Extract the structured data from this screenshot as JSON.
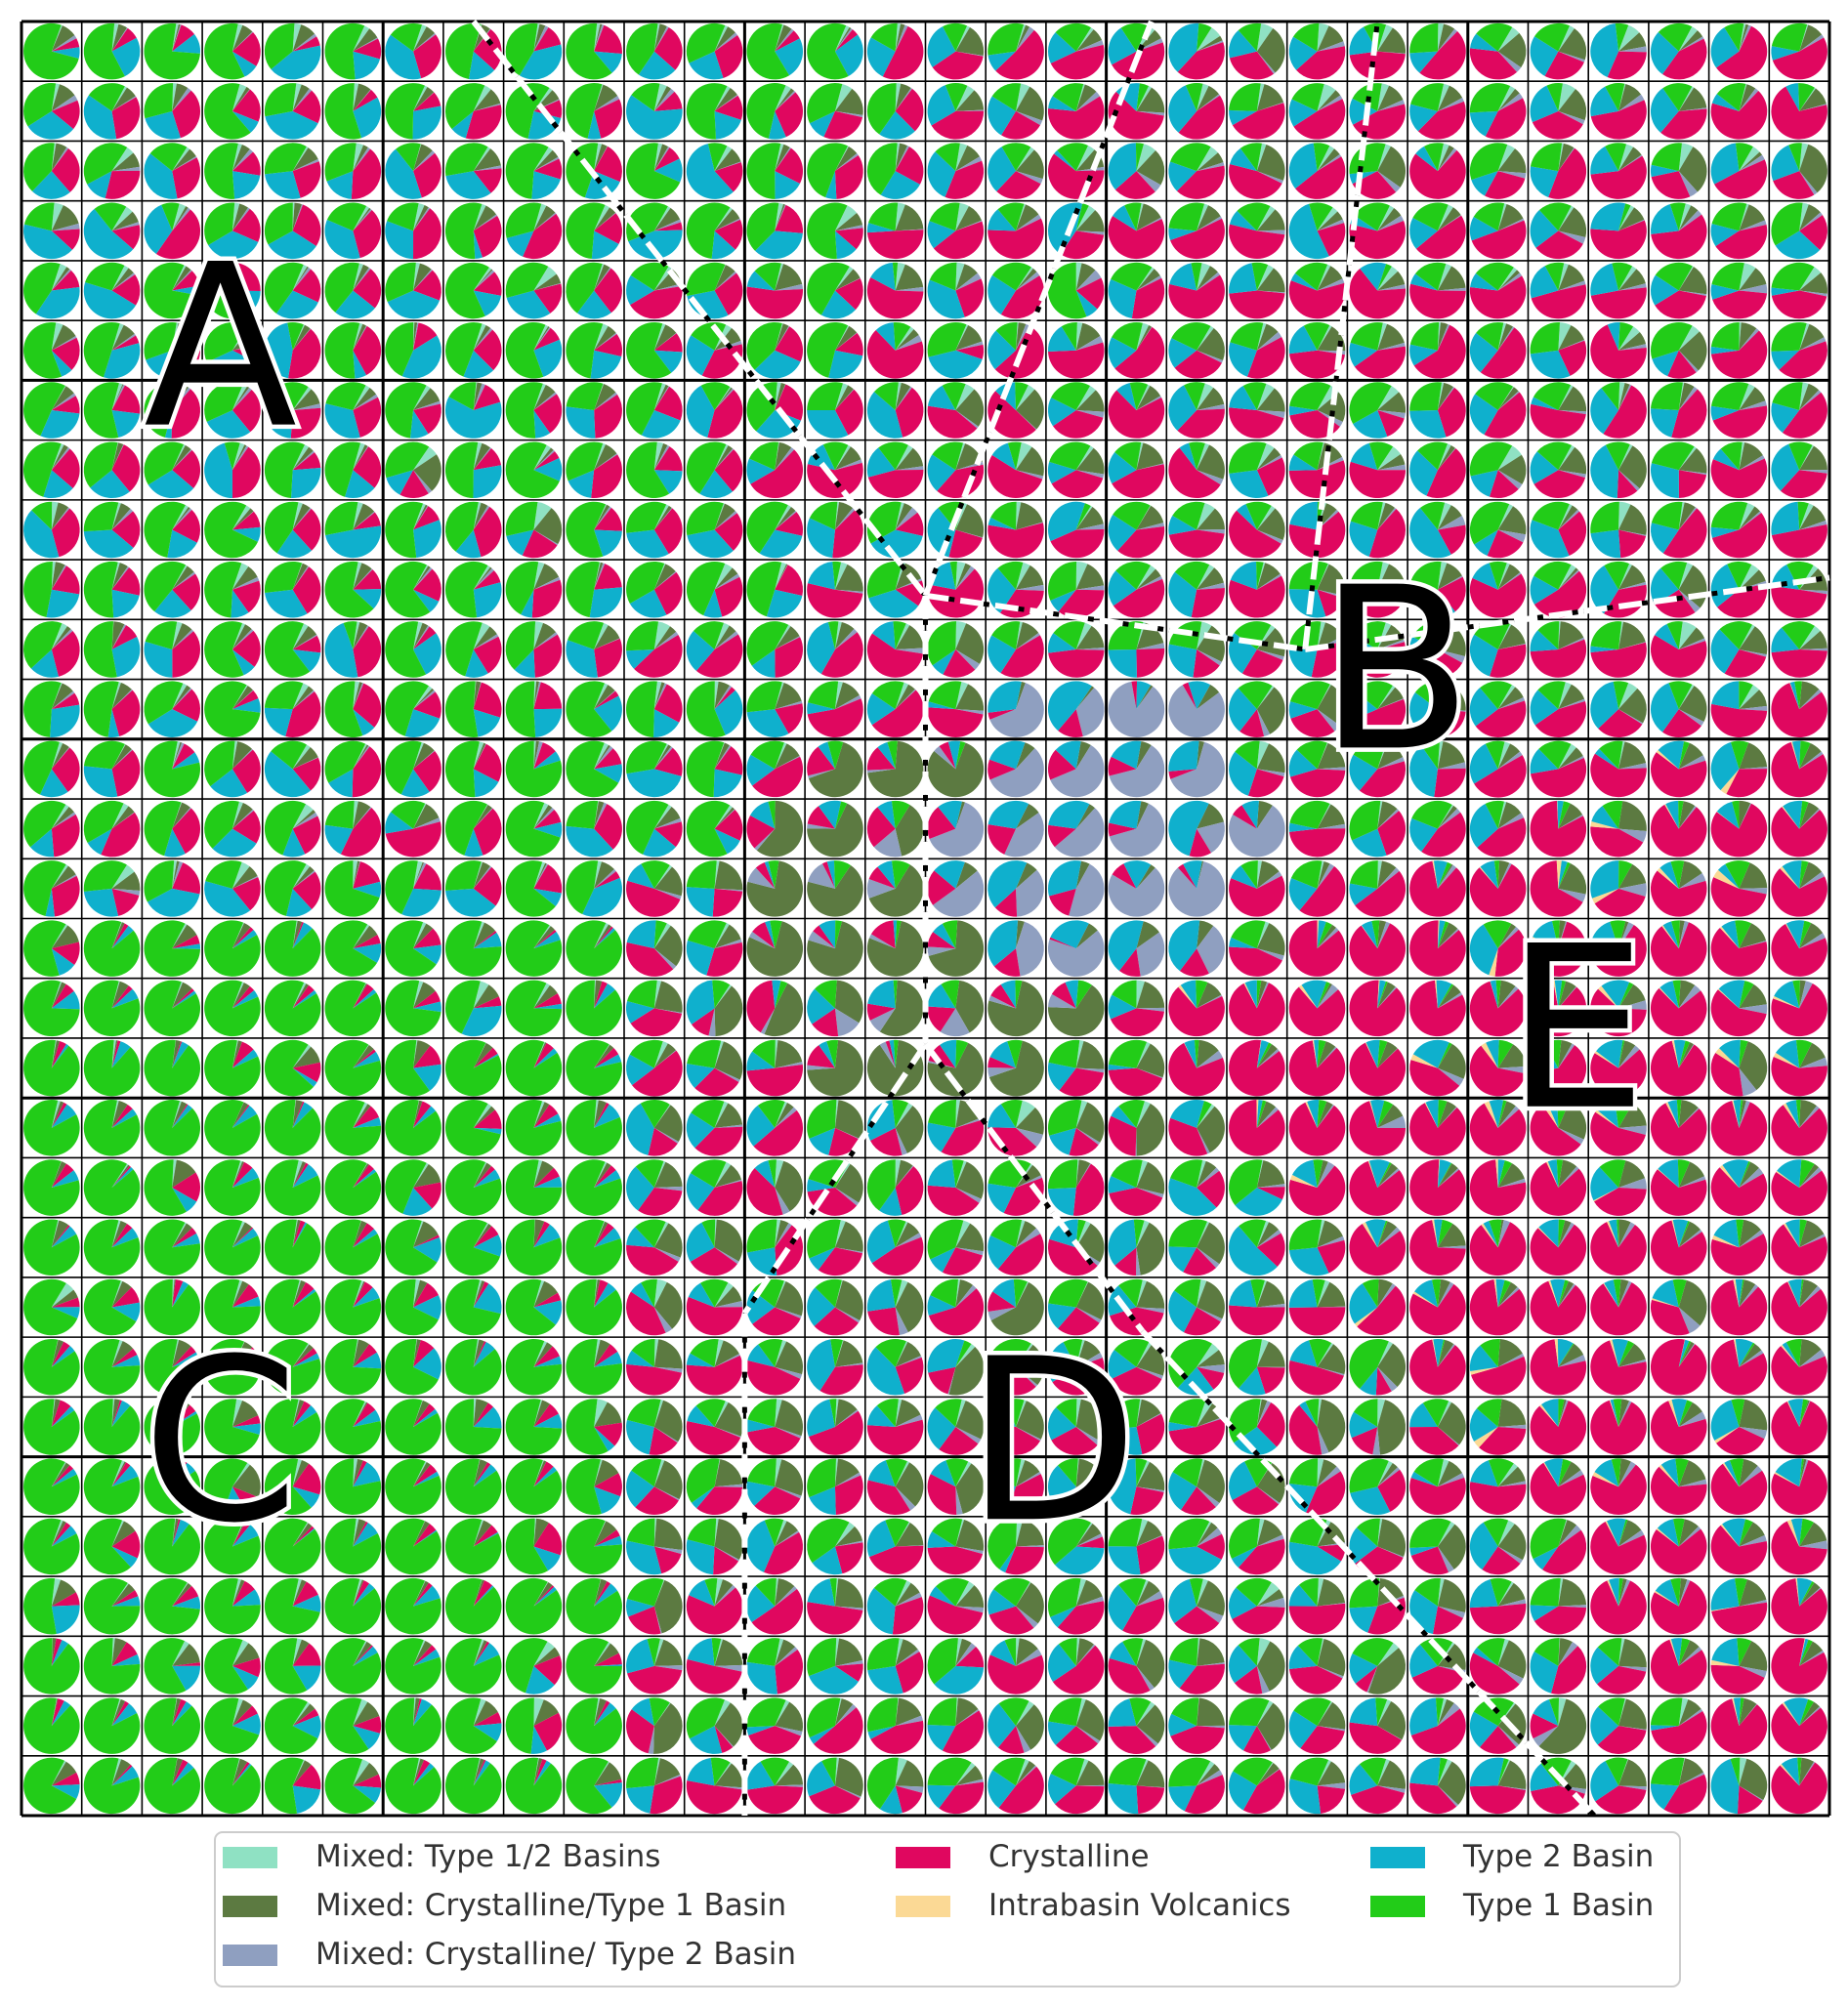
{
  "chart_data": {
    "type": "pie",
    "grid": {
      "rows": 30,
      "cols": 30,
      "major_every": 6
    },
    "legend": {
      "position": "bottom",
      "entries": [
        {
          "label": "Mixed: Type 1/2 Basins",
          "color": "#8fe1c3"
        },
        {
          "label": "Mixed: Crystalline/Type 1 Basin",
          "color": "#5c7a41"
        },
        {
          "label": "Mixed: Crystalline/ Type 2 Basin",
          "color": "#8f9fc0"
        },
        {
          "label": "Crystalline",
          "color": "#e0075f"
        },
        {
          "label": "Intrabasin Volcanics",
          "color": "#fbd995"
        },
        {
          "label": "Type 2 Basin",
          "color": "#0fb0cd"
        },
        {
          "label": "Type 1 Basin",
          "color": "#22cc18"
        }
      ]
    },
    "region_labels": [
      "A",
      "B",
      "C",
      "D",
      "E"
    ],
    "region_points": {
      "A": [
        0.18,
        0.11
      ],
      "B": [
        0.36,
        0.76
      ],
      "C": [
        0.79,
        0.11
      ],
      "D": [
        0.79,
        0.57
      ],
      "E": [
        0.56,
        0.86
      ]
    },
    "region_mix": {
      "A": [
        0.02,
        0.05,
        0.01,
        0.22,
        0.0,
        0.24,
        0.46
      ],
      "B": [
        0.03,
        0.13,
        0.02,
        0.42,
        0.0,
        0.2,
        0.2
      ],
      "C": [
        0.01,
        0.04,
        0.0,
        0.05,
        0.0,
        0.06,
        0.84
      ],
      "D": [
        0.02,
        0.2,
        0.02,
        0.34,
        0.0,
        0.2,
        0.22
      ],
      "E": [
        0.0,
        0.07,
        0.02,
        0.78,
        0.01,
        0.08,
        0.04
      ],
      "center": [
        0.0,
        0.66,
        0.06,
        0.12,
        0.0,
        0.1,
        0.06
      ],
      "core": [
        0.0,
        0.05,
        0.62,
        0.1,
        0.0,
        0.23,
        0.0
      ]
    },
    "boundaries": [
      [
        [
          0.0,
          0.25
        ],
        [
          0.32,
          0.5
        ]
      ],
      [
        [
          0.32,
          0.5
        ],
        [
          0.35,
          0.71
        ]
      ],
      [
        [
          0.35,
          0.71
        ],
        [
          0.0,
          0.75
        ]
      ],
      [
        [
          0.35,
          0.71
        ],
        [
          0.31,
          1.0
        ]
      ],
      [
        [
          0.32,
          0.5
        ],
        [
          0.0,
          0.625
        ]
      ],
      [
        [
          0.32,
          0.5
        ],
        [
          0.5,
          0.5
        ]
      ],
      [
        [
          0.5,
          0.5
        ],
        [
          0.57,
          0.5
        ]
      ],
      [
        [
          0.57,
          0.5
        ],
        [
          0.72,
          0.4
        ]
      ],
      [
        [
          0.72,
          0.4
        ],
        [
          1.0,
          0.4
        ]
      ],
      [
        [
          0.57,
          0.5
        ],
        [
          0.73,
          0.62
        ]
      ],
      [
        [
          0.73,
          0.62
        ],
        [
          1.0,
          0.87
        ]
      ]
    ]
  }
}
